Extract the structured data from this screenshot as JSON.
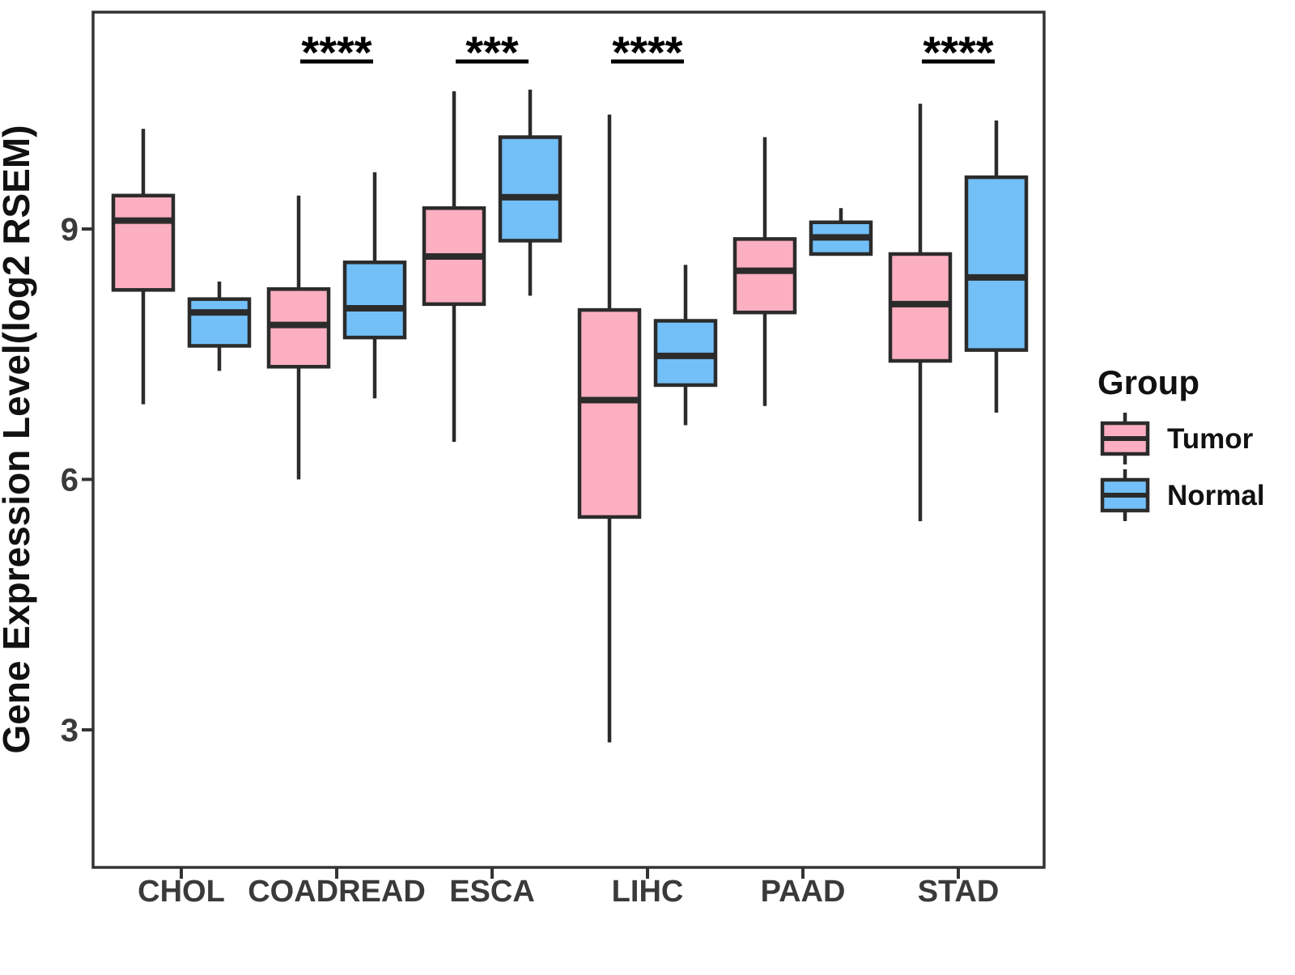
{
  "chart_data": {
    "type": "boxplot",
    "title": "",
    "ylabel": "Gene Expression Level(log2 RSEM)",
    "xlabel": "",
    "yticks": [
      3,
      6,
      9
    ],
    "ylim": [
      1.35,
      11.6
    ],
    "grid": "off",
    "legend_position": "right",
    "categories": [
      "CHOL",
      "COADREAD",
      "ESCA",
      "LIHC",
      "PAAD",
      "STAD"
    ],
    "legend": {
      "title": "Group",
      "entries": [
        {
          "label": "Tumor",
          "color": "#FBAFC0"
        },
        {
          "label": "Normal",
          "color": "#73BFF7"
        }
      ]
    },
    "series": [
      {
        "name": "Tumor",
        "color": "#FBAFC0",
        "boxes": [
          {
            "category": "CHOL",
            "low": 6.9,
            "q1": 8.27,
            "median": 9.1,
            "q3": 9.4,
            "high": 10.2
          },
          {
            "category": "COADREAD",
            "low": 6.0,
            "q1": 7.35,
            "median": 7.85,
            "q3": 8.28,
            "high": 9.4
          },
          {
            "category": "ESCA",
            "low": 6.45,
            "q1": 8.1,
            "median": 8.67,
            "q3": 9.25,
            "high": 10.65
          },
          {
            "category": "LIHC",
            "low": 2.85,
            "q1": 5.55,
            "median": 6.95,
            "q3": 8.03,
            "high": 10.37
          },
          {
            "category": "PAAD",
            "low": 6.88,
            "q1": 8.0,
            "median": 8.5,
            "q3": 8.88,
            "high": 10.1
          },
          {
            "category": "STAD",
            "low": 5.5,
            "q1": 7.42,
            "median": 8.1,
            "q3": 8.7,
            "high": 10.5
          }
        ]
      },
      {
        "name": "Normal",
        "color": "#73BFF7",
        "boxes": [
          {
            "category": "CHOL",
            "low": 7.3,
            "q1": 7.6,
            "median": 8.0,
            "q3": 8.16,
            "high": 8.37
          },
          {
            "category": "COADREAD",
            "low": 6.97,
            "q1": 7.7,
            "median": 8.05,
            "q3": 8.6,
            "high": 9.68
          },
          {
            "category": "ESCA",
            "low": 8.2,
            "q1": 8.86,
            "median": 9.38,
            "q3": 10.1,
            "high": 10.67
          },
          {
            "category": "LIHC",
            "low": 6.65,
            "q1": 7.13,
            "median": 7.48,
            "q3": 7.9,
            "high": 8.57
          },
          {
            "category": "PAAD",
            "low": 8.68,
            "q1": 8.7,
            "median": 8.9,
            "q3": 9.08,
            "high": 9.25
          },
          {
            "category": "STAD",
            "low": 6.8,
            "q1": 7.55,
            "median": 8.42,
            "q3": 9.62,
            "high": 10.3
          }
        ]
      }
    ],
    "significance": [
      {
        "category": "COADREAD",
        "label": "****"
      },
      {
        "category": "ESCA",
        "label": "***"
      },
      {
        "category": "LIHC",
        "label": "****"
      },
      {
        "category": "STAD",
        "label": "****"
      }
    ],
    "colors": {
      "box_outline": "#2B2B2B",
      "axis_line": "#333333",
      "axis_text": "#3A3A3A",
      "annotation": "#000000",
      "background": "#FFFFFF"
    }
  }
}
